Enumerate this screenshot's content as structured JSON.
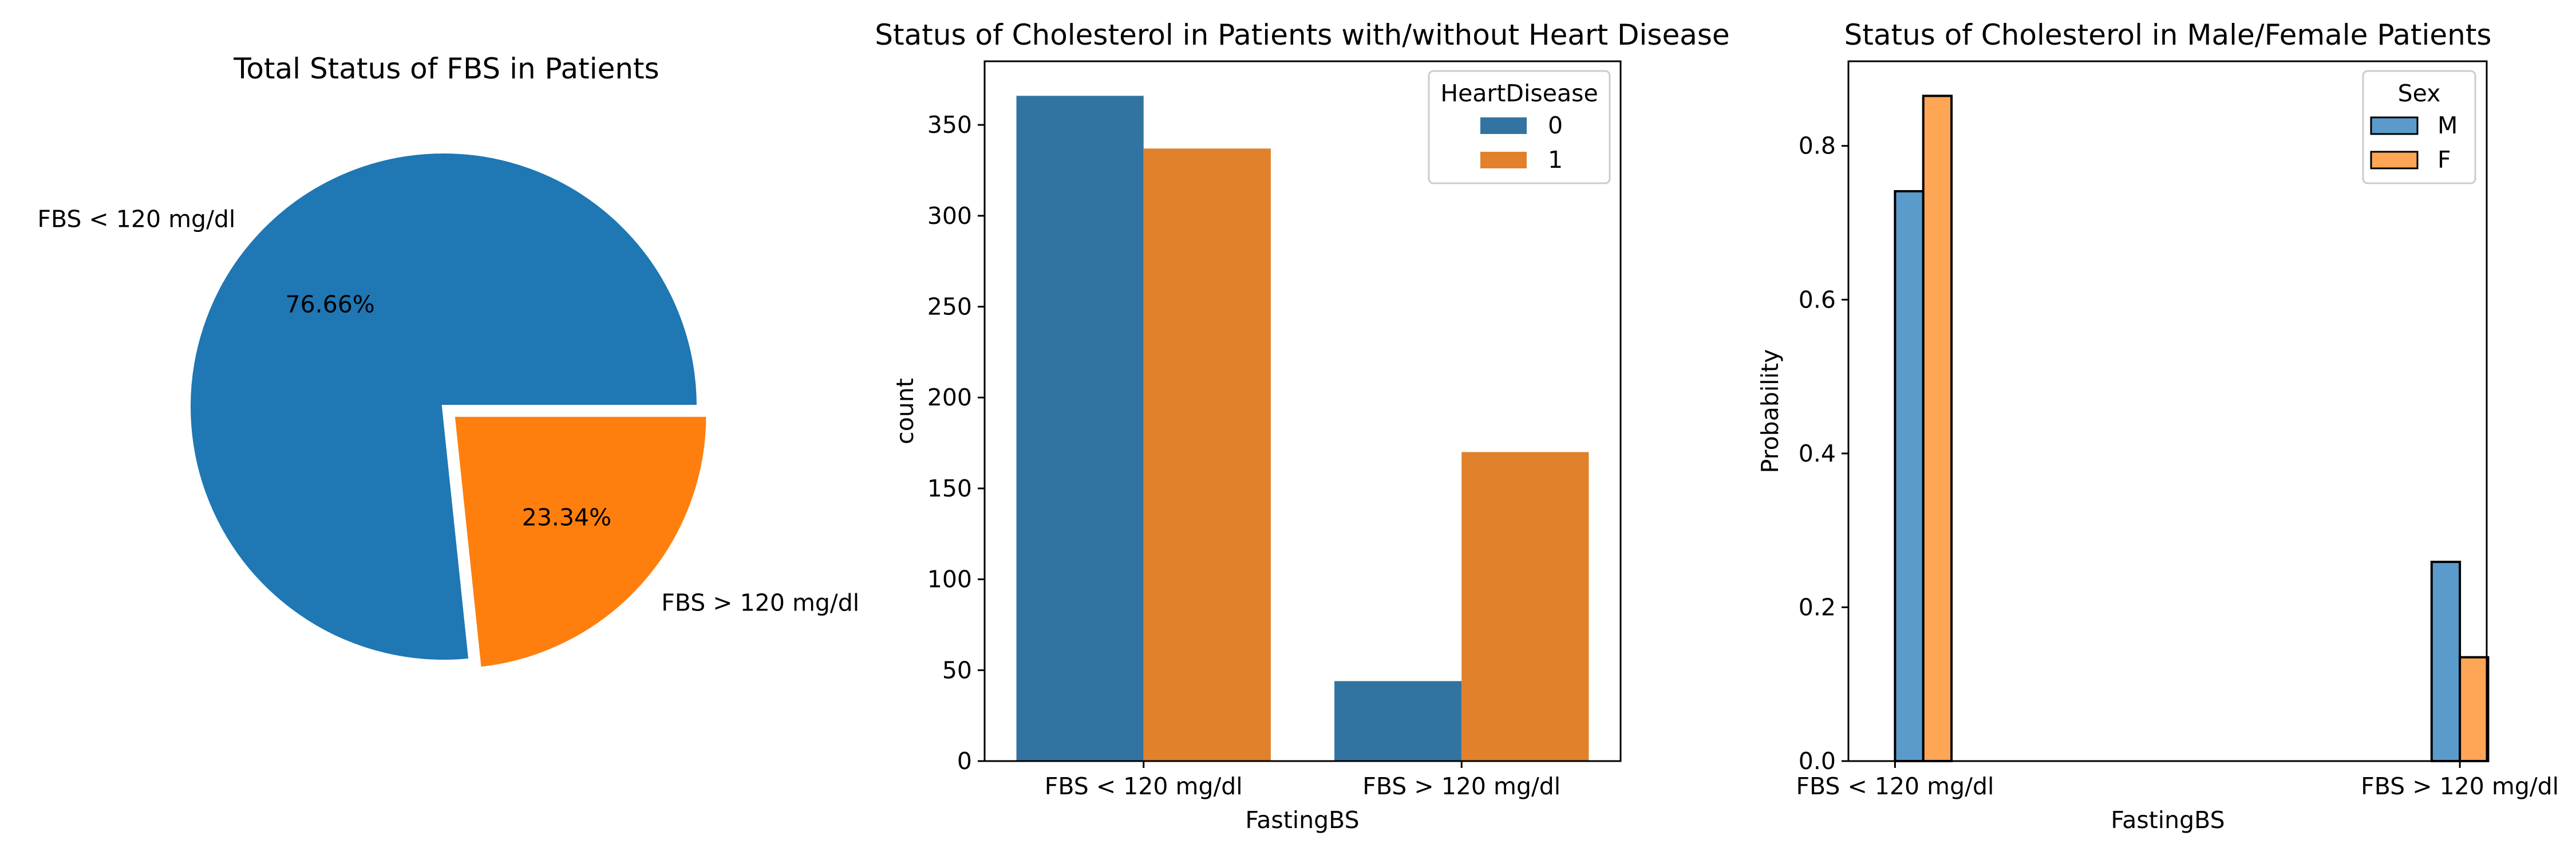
{
  "chart_data": [
    {
      "type": "pie",
      "title": "Total Status of FBS in Patients",
      "labels": [
        "FBS < 120 mg/dl",
        "FBS > 120 mg/dl"
      ],
      "values": [
        76.66,
        23.34
      ],
      "pct_labels": [
        "76.66%",
        "23.34%"
      ],
      "explode": [
        0,
        0.05
      ],
      "colors": [
        "#1f77b4",
        "#ff7f0e"
      ]
    },
    {
      "type": "bar",
      "title": "Status of Cholesterol in Patients with/without Heart Disease",
      "xlabel": "FastingBS",
      "ylabel": "count",
      "categories": [
        "FBS < 120 mg/dl",
        "FBS > 120 mg/dl"
      ],
      "series": [
        {
          "name": "0",
          "values": [
            366,
            44
          ],
          "color": "#3274a1"
        },
        {
          "name": "1",
          "values": [
            337,
            170
          ],
          "color": "#e1812c"
        }
      ],
      "ylim": [
        0,
        385
      ],
      "yticks": [
        0,
        50,
        100,
        150,
        200,
        250,
        300,
        350
      ],
      "legend": {
        "title": "HeartDisease",
        "position": "top-right"
      }
    },
    {
      "type": "bar",
      "title": "Status of Cholesterol in Male/Female Patients",
      "xlabel": "FastingBS",
      "ylabel": "Probability",
      "categories": [
        "FBS < 120 mg/dl",
        "FBS > 120 mg/dl"
      ],
      "series": [
        {
          "name": "M",
          "values": [
            0.741,
            0.259
          ],
          "color": "#5a9bcc"
        },
        {
          "name": "F",
          "values": [
            0.865,
            0.135
          ],
          "color": "#ffa556"
        }
      ],
      "ylim": [
        0,
        0.91
      ],
      "yticks": [
        0.0,
        0.2,
        0.4,
        0.6,
        0.8
      ],
      "ytick_labels": [
        "0.0",
        "0.2",
        "0.4",
        "0.6",
        "0.8"
      ],
      "legend": {
        "title": "Sex",
        "position": "top-right"
      }
    }
  ]
}
